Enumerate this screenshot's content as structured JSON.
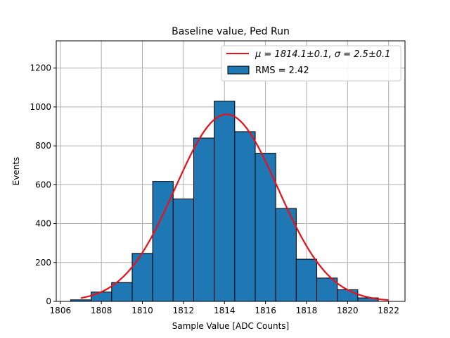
{
  "chart_data": {
    "type": "bar",
    "title": "Baseline value, Ped Run",
    "xlabel": "Sample Value [ADC Counts]",
    "ylabel": "Events",
    "xlim": [
      1805.8,
      1822.8
    ],
    "ylim": [
      0,
      1340
    ],
    "grid": true,
    "legend_position": "top-right",
    "x_ticks": [
      1806,
      1808,
      1810,
      1812,
      1814,
      1816,
      1818,
      1820,
      1822
    ],
    "y_ticks": [
      0,
      200,
      400,
      600,
      800,
      1000,
      1200
    ],
    "bin_width": 1,
    "bins": [
      {
        "left": 1806.5,
        "value": 8
      },
      {
        "left": 1807.5,
        "value": 48
      },
      {
        "left": 1808.5,
        "value": 97
      },
      {
        "left": 1809.5,
        "value": 247
      },
      {
        "left": 1810.5,
        "value": 617
      },
      {
        "left": 1811.5,
        "value": 527
      },
      {
        "left": 1812.5,
        "value": 840
      },
      {
        "left": 1813.5,
        "value": 1030
      },
      {
        "left": 1814.5,
        "value": 873
      },
      {
        "left": 1815.5,
        "value": 762
      },
      {
        "left": 1816.5,
        "value": 478
      },
      {
        "left": 1817.5,
        "value": 217
      },
      {
        "left": 1818.5,
        "value": 120
      },
      {
        "left": 1819.5,
        "value": 60
      },
      {
        "left": 1820.5,
        "value": 18
      }
    ],
    "fit": {
      "type": "gaussian",
      "mu": 1814.1,
      "sigma": 2.5,
      "amplitude": 962,
      "x_range": [
        1807,
        1822
      ]
    },
    "series": [
      {
        "name_prefix": "μ = 1814.1±0.1, ",
        "name_suffix": "σ = 2.5±0.1",
        "kind": "line",
        "color": "#e8111b"
      },
      {
        "name": "RMS = 2.42",
        "kind": "bar",
        "color": "#1f77b4"
      }
    ]
  }
}
